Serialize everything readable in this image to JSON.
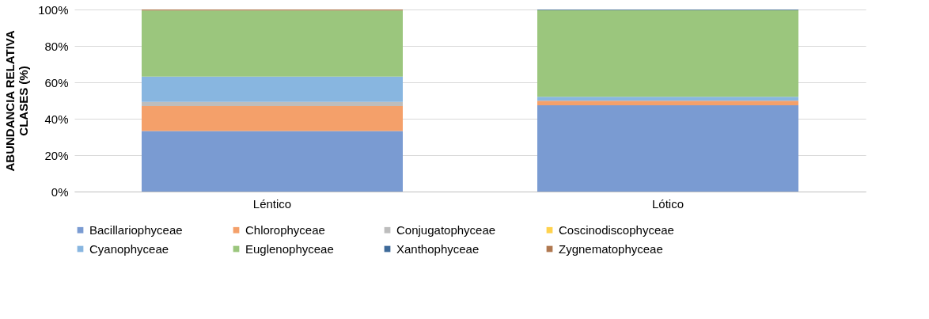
{
  "chart_data": {
    "type": "bar",
    "stacked": true,
    "ylabel": "ABUNDANCIA  RELATIVA\nCLASES (%)",
    "categories": [
      "Léntico",
      "Lótico"
    ],
    "ylim": [
      0,
      100
    ],
    "yticks": [
      {
        "value": 0,
        "label": "0%"
      },
      {
        "value": 20,
        "label": "20%"
      },
      {
        "value": 40,
        "label": "40%"
      },
      {
        "value": 60,
        "label": "60%"
      },
      {
        "value": 80,
        "label": "80%"
      },
      {
        "value": 100,
        "label": "100%"
      }
    ],
    "grid": "y",
    "legend": "bottom",
    "series": [
      {
        "name": "Bacillariophyceae",
        "color": "#7a9bd2",
        "values": [
          33.3,
          47.4
        ]
      },
      {
        "name": "Chlorophyceae",
        "color": "#f4a06a",
        "values": [
          13.7,
          2.5
        ]
      },
      {
        "name": "Conjugatophyceae",
        "color": "#bdbdbd",
        "values": [
          2.2,
          0
        ]
      },
      {
        "name": "Coscinodiscophyceae",
        "color": "#ffd24d",
        "values": [
          0,
          0
        ]
      },
      {
        "name": "Cyanophyceae",
        "color": "#88b6e0",
        "values": [
          13.9,
          2.2
        ]
      },
      {
        "name": "Euglenophyceae",
        "color": "#9bc67d",
        "values": [
          36.4,
          47.6
        ]
      },
      {
        "name": "Xanthophyceae",
        "color": "#3e6a99",
        "values": [
          0,
          0.3
        ]
      },
      {
        "name": "Zygnematophyceae",
        "color": "#b07850",
        "values": [
          0.5,
          0
        ]
      }
    ]
  }
}
